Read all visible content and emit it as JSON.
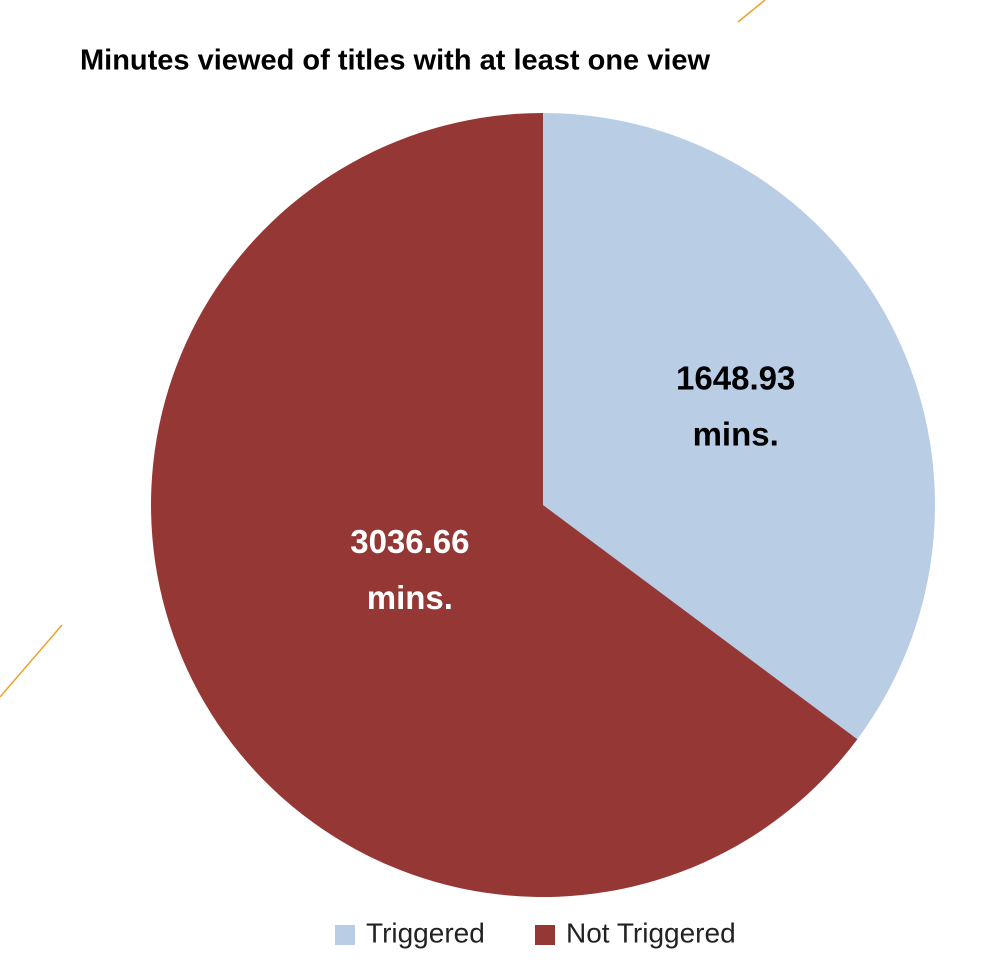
{
  "chart_data": {
    "type": "pie",
    "title": "Minutes viewed of titles with at least one view",
    "categories": [
      "Triggered",
      "Not Triggered"
    ],
    "values": [
      1648.93,
      3036.66
    ],
    "value_labels": [
      "1648.93 mins.",
      "3036.66 mins."
    ],
    "colors": [
      "#b9cde5",
      "#953735"
    ],
    "legend": "bottom"
  }
}
